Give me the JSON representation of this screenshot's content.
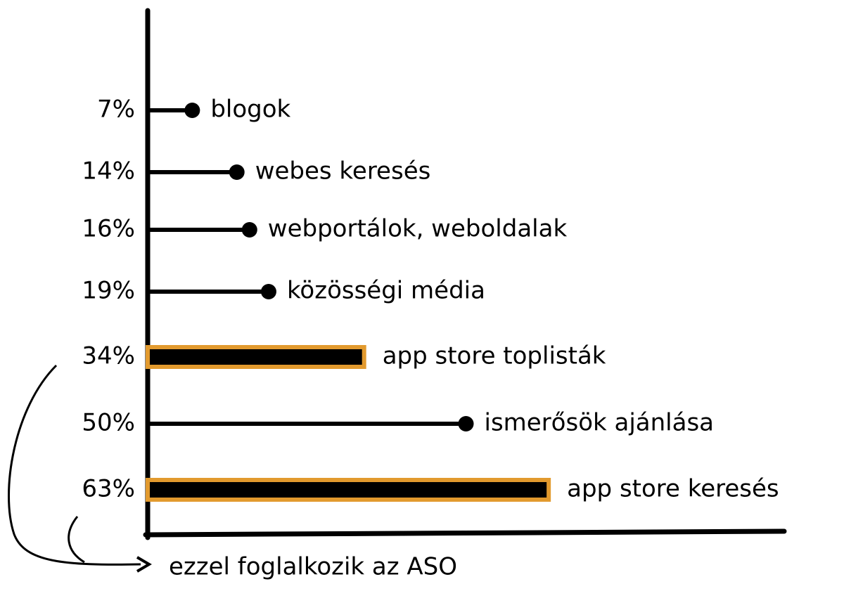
{
  "chart_data": {
    "type": "lollipop",
    "categories": [
      "blogok",
      "webes keresés",
      "webportálok, weboldalak",
      "közösségi média",
      "app store toplisták",
      "ismerősök ajánlása",
      "app store keresés"
    ],
    "values": [
      7,
      14,
      16,
      19,
      34,
      50,
      63
    ],
    "value_labels": [
      "7%",
      "14%",
      "16%",
      "19%",
      "34%",
      "50%",
      "63%"
    ],
    "mark_style": [
      "lollipop",
      "lollipop",
      "lollipop",
      "lollipop",
      "bar",
      "lollipop",
      "bar"
    ],
    "color": "#000000",
    "highlight_color": "#e29a2e",
    "xlim": [
      0,
      100
    ],
    "annotation": "ezzel foglalkozik az ASO"
  }
}
